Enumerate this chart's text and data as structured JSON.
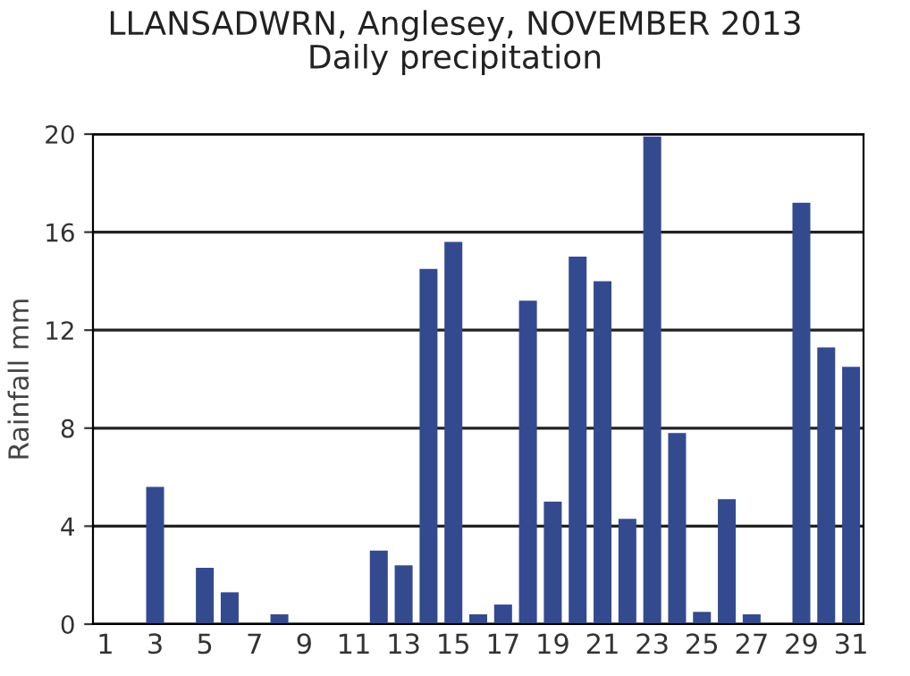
{
  "chart_data": {
    "type": "bar",
    "title": "LLANSADWRN, Anglesey, NOVEMBER 2013\nDaily precipitation",
    "ylabel": "Rainfall mm",
    "categories": [
      "1",
      null,
      "3",
      null,
      "5",
      null,
      "7",
      null,
      "9",
      null,
      "11",
      null,
      "13",
      null,
      "15",
      null,
      "17",
      null,
      "19",
      null,
      "21",
      null,
      "23",
      null,
      "25",
      null,
      "27",
      null,
      "29",
      null,
      "31"
    ],
    "values": [
      0,
      0,
      5.6,
      0,
      2.3,
      1.3,
      0,
      0.4,
      0,
      0,
      0,
      3.0,
      2.4,
      14.5,
      15.6,
      0.4,
      0.8,
      13.2,
      5.0,
      15.0,
      14.0,
      4.3,
      19.9,
      7.8,
      0.5,
      5.1,
      0.4,
      0,
      17.2,
      11.3,
      10.5
    ],
    "color": "#344a8f",
    "ylim": [
      0,
      20
    ],
    "yticks": [
      0,
      4,
      8,
      12,
      16,
      20
    ],
    "grid": "y",
    "legend": false
  }
}
